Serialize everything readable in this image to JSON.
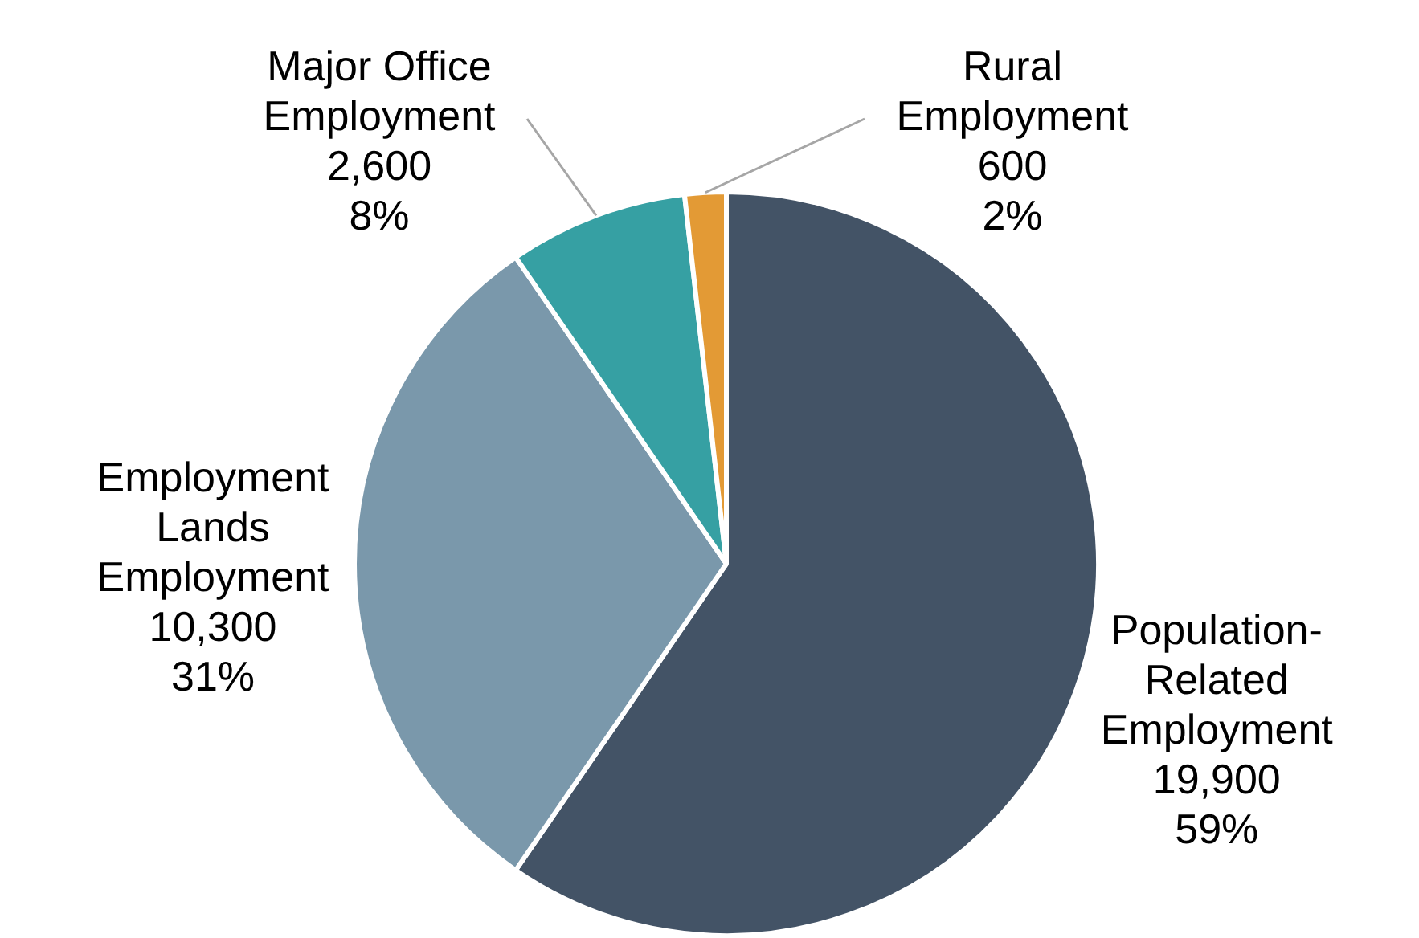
{
  "chart_data": {
    "type": "pie",
    "categories": [
      "Population-Related Employment",
      "Employment Lands Employment",
      "Major Office Employment",
      "Rural Employment"
    ],
    "values": [
      19900,
      10300,
      2600,
      600
    ],
    "colors": [
      "#435366",
      "#7a98ab",
      "#36a0a3",
      "#e39a35"
    ],
    "value_labels": [
      "19,900\n59%",
      "10,300\n31%",
      "2,600\n8%",
      "600\n2%"
    ]
  }
}
